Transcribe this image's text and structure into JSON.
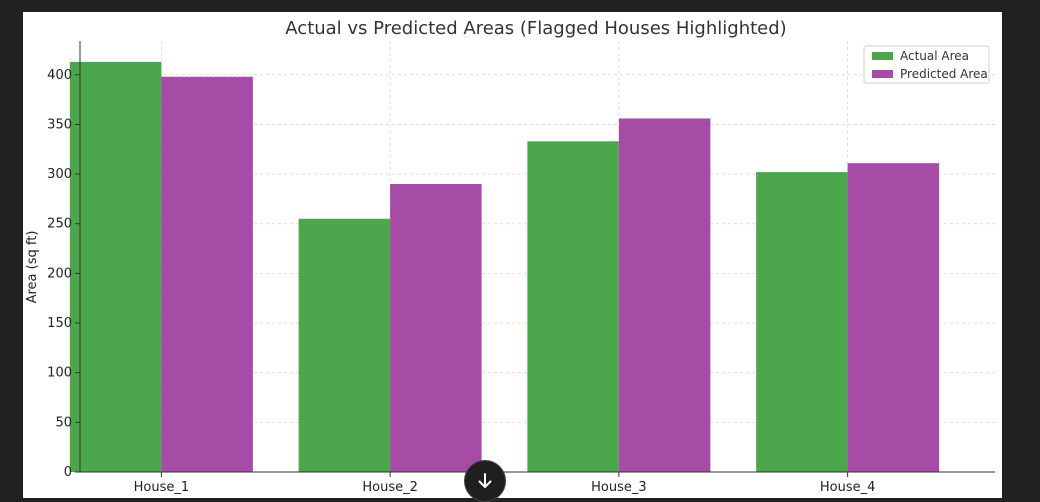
{
  "colors": {
    "actual": "#4ca64c",
    "predicted": "#a64ca6",
    "grid": "#d8d8d8",
    "axis": "#333333"
  },
  "scroll_button": {
    "icon": "arrow-down-icon"
  },
  "chart_data": {
    "type": "bar",
    "title": "Actual vs Predicted Areas (Flagged Houses Highlighted)",
    "xlabel": "",
    "ylabel": "Area (sq ft)",
    "categories": [
      "House_1",
      "House_2",
      "House_3",
      "House_4"
    ],
    "series": [
      {
        "name": "Actual Area",
        "values": [
          413,
          255,
          333,
          302
        ],
        "color": "#4ca64c"
      },
      {
        "name": "Predicted Area",
        "values": [
          398,
          290,
          356,
          311
        ],
        "color": "#a64ca6"
      }
    ],
    "ylim": [
      0,
      434
    ],
    "yticks": [
      0,
      50,
      100,
      150,
      200,
      250,
      300,
      350,
      400
    ],
    "grid": true,
    "legend": "top-right"
  }
}
